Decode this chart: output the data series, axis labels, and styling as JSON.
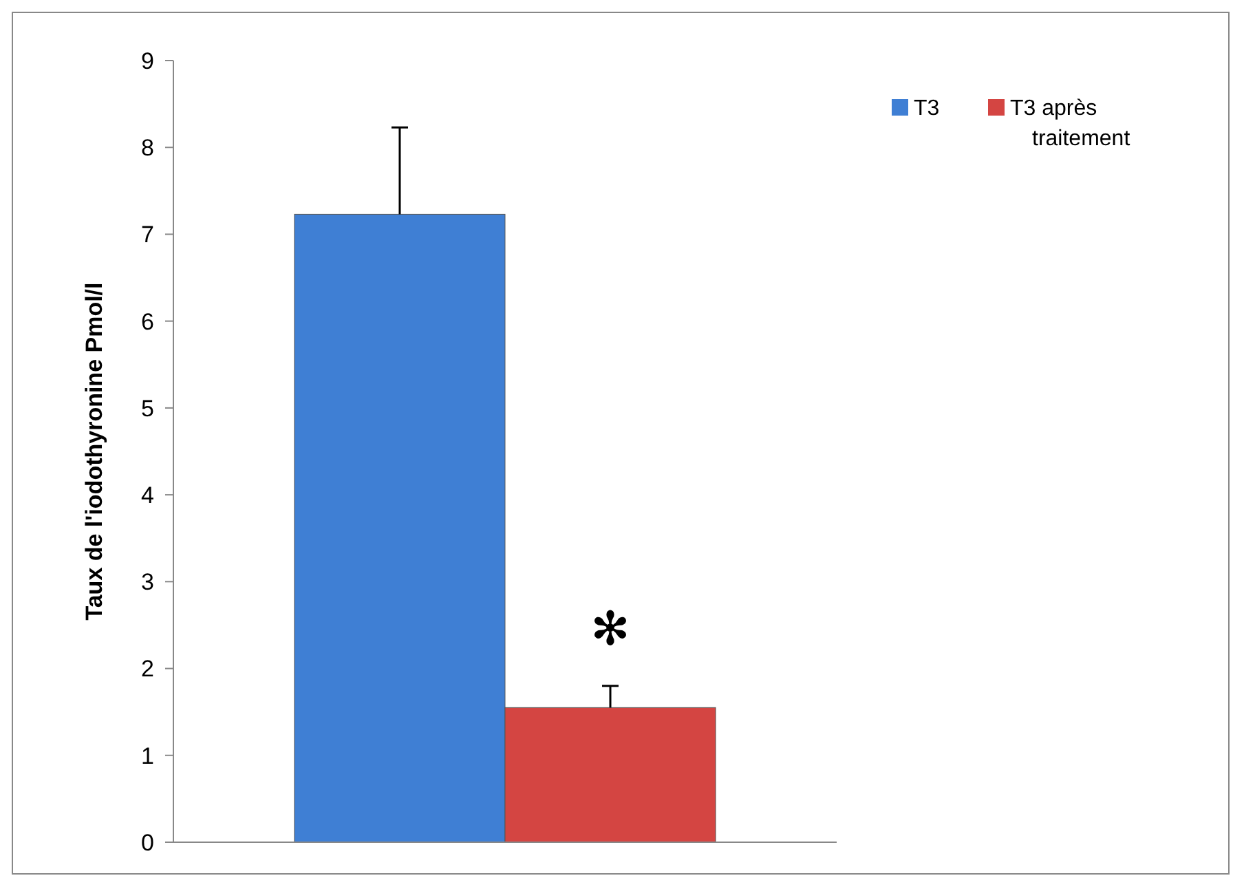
{
  "chart_data": {
    "type": "bar",
    "ylabel": "Taux de l'iodothyronine Pmol/l",
    "categories": [
      null
    ],
    "series": [
      {
        "name": "T3",
        "color": "#3f7fd4",
        "values": [
          7.23
        ],
        "errors": [
          1.0
        ]
      },
      {
        "name": "T3 après traitement",
        "color": "#d44542",
        "values": [
          1.55
        ],
        "errors": [
          0.25
        ]
      }
    ],
    "ylim": [
      0,
      9
    ],
    "yticks": [
      0,
      1,
      2,
      3,
      4,
      5,
      6,
      7,
      8,
      9
    ],
    "grid": false,
    "legend": "right",
    "annotations": [
      "✻"
    ]
  }
}
